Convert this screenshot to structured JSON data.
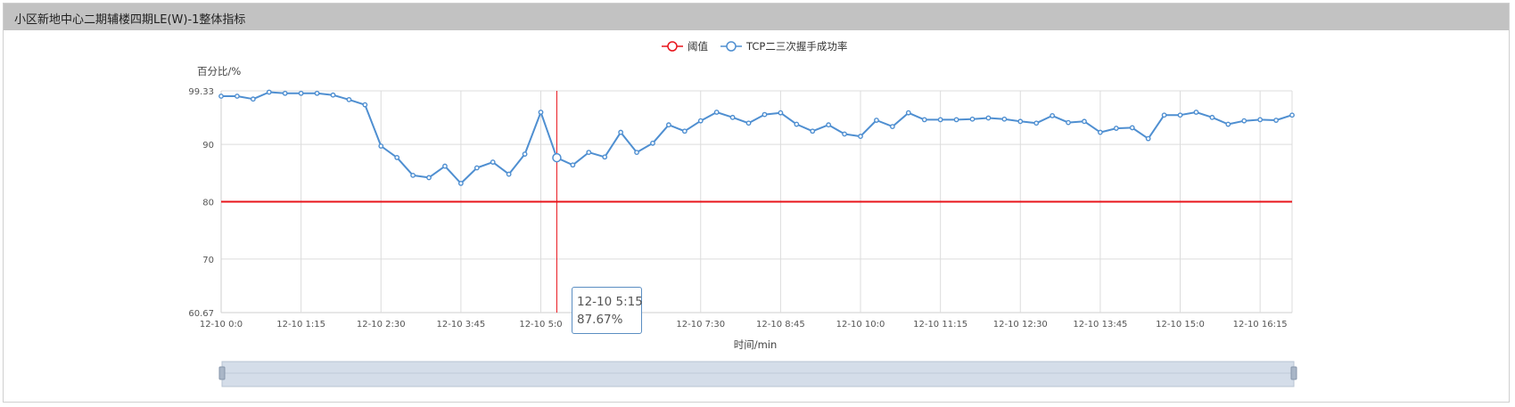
{
  "panel": {
    "title": "小区新地中心二期辅楼四期LE(W)-1整体指标"
  },
  "tooltip": {
    "time": "12-10 5:15",
    "value": "87.67%"
  },
  "colors": {
    "threshold": "#e8141b",
    "series": "#4f8fd1",
    "panel_header": "#c2c2c2",
    "slider": "#d4dde9"
  },
  "chart_data": {
    "type": "line",
    "xlabel": "时间/min",
    "ylabel": "百分比/%",
    "ylim": [
      60.67,
      99.33
    ],
    "yticks": [
      "99.33",
      "90",
      "80",
      "70",
      "60.67"
    ],
    "ytick_values": [
      99.33,
      90,
      80,
      70,
      60.67
    ],
    "grid": true,
    "legend_position": "top-center",
    "xticks": [
      "12-10 0:0",
      "12-10 1:15",
      "12-10 2:30",
      "12-10 3:45",
      "12-10 5:0",
      "12-10 7:30",
      "12-10 8:45",
      "12-10 10:0",
      "12-10 11:15",
      "12-10 12:30",
      "12-10 13:45",
      "12-10 15:0",
      "12-10 16:15"
    ],
    "xtick_index": [
      0,
      5,
      10,
      15,
      20,
      30,
      35,
      40,
      45,
      50,
      55,
      60,
      65
    ],
    "x_interval_min": 15,
    "tooltip_index": 21,
    "series": [
      {
        "name": "阈值",
        "values": [
          80,
          80,
          80,
          80,
          80,
          80,
          80,
          80,
          80,
          80,
          80,
          80,
          80,
          80,
          80,
          80,
          80,
          80,
          80,
          80,
          80,
          80,
          80,
          80,
          80,
          80,
          80,
          80,
          80,
          80,
          80,
          80,
          80,
          80,
          80,
          80,
          80,
          80,
          80,
          80,
          80,
          80,
          80,
          80,
          80,
          80,
          80,
          80,
          80,
          80,
          80,
          80,
          80,
          80,
          80,
          80,
          80,
          80,
          80,
          80,
          80,
          80,
          80,
          80,
          80,
          80,
          80,
          80
        ]
      },
      {
        "name": "TCP二三次握手成功率",
        "values": [
          98.4,
          98.4,
          97.9,
          99.1,
          98.9,
          98.9,
          98.9,
          98.6,
          97.8,
          96.9,
          89.7,
          87.7,
          84.6,
          84.2,
          86.2,
          83.2,
          85.9,
          86.9,
          84.8,
          88.3,
          95.6,
          87.67,
          86.4,
          88.6,
          87.8,
          92.1,
          88.6,
          90.2,
          93.4,
          92.3,
          94.1,
          95.6,
          94.7,
          93.7,
          95.2,
          95.5,
          93.5,
          92.3,
          93.4,
          91.8,
          91.4,
          94.2,
          93.1,
          95.5,
          94.3,
          94.3,
          94.3,
          94.4,
          94.6,
          94.4,
          94,
          93.7,
          95.0,
          93.8,
          94.0,
          92.1,
          92.8,
          92.9,
          91.0,
          95.1,
          95.1,
          95.6,
          94.7,
          93.5,
          94.1,
          94.3,
          94.2,
          95.1
        ]
      }
    ]
  }
}
